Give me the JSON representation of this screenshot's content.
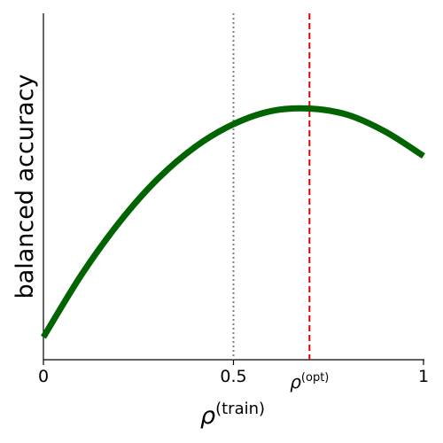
{
  "chart_data": {
    "type": "line",
    "xlabel": {
      "base": "ρ",
      "superscript": "(train)"
    },
    "ylabel": "balanced accuracy",
    "xlim": [
      0,
      1
    ],
    "ylim": [
      0,
      1
    ],
    "x_ticks": [
      {
        "value": 0,
        "label": "0"
      },
      {
        "value": 0.5,
        "label": "0.5"
      },
      {
        "value": 1,
        "label": "1"
      }
    ],
    "grid": false,
    "series": [
      {
        "color": "#006400",
        "x": [
          0,
          0.1,
          0.2,
          0.3,
          0.4,
          0.5,
          0.6,
          0.7,
          0.8,
          0.9,
          1.0
        ],
        "y": [
          0.065,
          0.245,
          0.397,
          0.521,
          0.615,
          0.68,
          0.718,
          0.725,
          0.707,
          0.658,
          0.588
        ]
      }
    ],
    "reference_lines": [
      {
        "kind": "vertical",
        "x": 0.5,
        "style": "dotted",
        "color": "#808080"
      },
      {
        "kind": "vertical",
        "x": 0.7,
        "style": "dashed",
        "color": "#e00000",
        "label": {
          "base": "ρ",
          "superscript": "(opt)"
        }
      }
    ]
  }
}
